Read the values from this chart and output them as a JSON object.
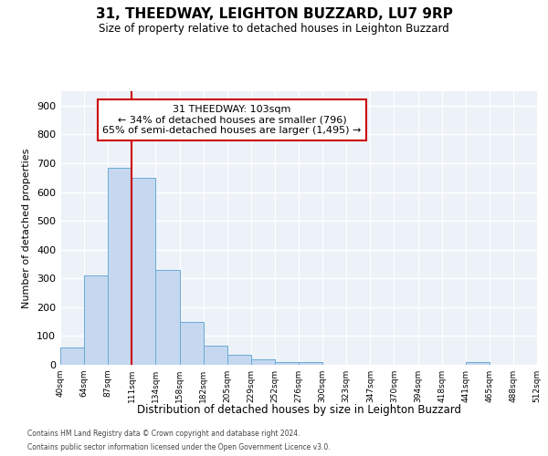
{
  "title1": "31, THEEDWAY, LEIGHTON BUZZARD, LU7 9RP",
  "title2": "Size of property relative to detached houses in Leighton Buzzard",
  "xlabel": "Distribution of detached houses by size in Leighton Buzzard",
  "ylabel": "Number of detached properties",
  "bar_values": [
    60,
    310,
    685,
    650,
    330,
    150,
    65,
    35,
    18,
    10,
    8,
    0,
    0,
    0,
    0,
    0,
    0,
    10,
    0,
    0
  ],
  "bin_labels": [
    "40sqm",
    "64sqm",
    "87sqm",
    "111sqm",
    "134sqm",
    "158sqm",
    "182sqm",
    "205sqm",
    "229sqm",
    "252sqm",
    "276sqm",
    "300sqm",
    "323sqm",
    "347sqm",
    "370sqm",
    "394sqm",
    "418sqm",
    "441sqm",
    "465sqm",
    "488sqm",
    "512sqm"
  ],
  "bar_color": "#c5d8f0",
  "bar_edge_color": "#6aaad4",
  "vline_color": "#cc0000",
  "annotation_text": "31 THEEDWAY: 103sqm\n← 34% of detached houses are smaller (796)\n65% of semi-detached houses are larger (1,495) →",
  "annotation_box_color": "#ffffff",
  "annotation_box_edgecolor": "#cc0000",
  "ylim": [
    0,
    950
  ],
  "yticks": [
    0,
    100,
    200,
    300,
    400,
    500,
    600,
    700,
    800,
    900
  ],
  "footer1": "Contains HM Land Registry data © Crown copyright and database right 2024.",
  "footer2": "Contains public sector information licensed under the Open Government Licence v3.0.",
  "background_color": "#edf2f9"
}
